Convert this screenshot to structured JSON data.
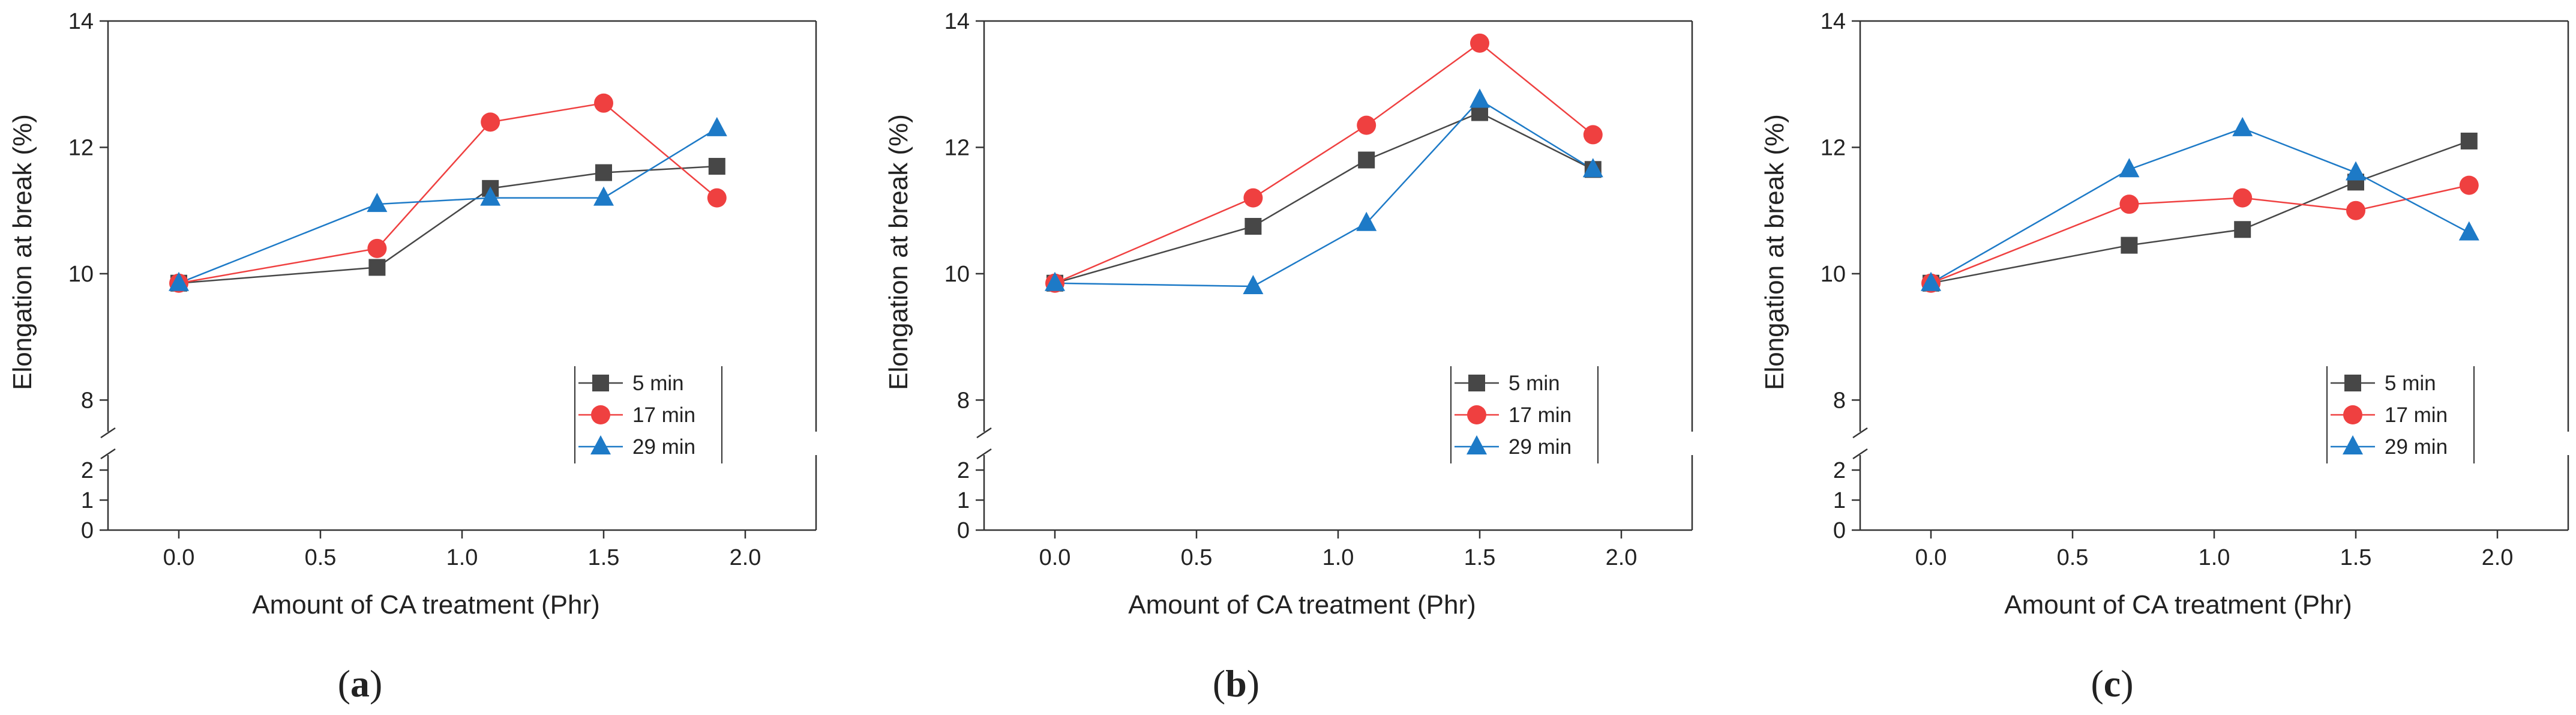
{
  "colors": {
    "5 min": "#474747",
    "17 min": "#ef4040",
    "29 min": "#1d7ac7",
    "axis": "#333333"
  },
  "chart_data": [
    {
      "type": "line",
      "caption": "(a)",
      "caption_parts": [
        "(",
        "a",
        ")"
      ],
      "xlabel": "Amount of CA treatment (Phr)",
      "ylabel": "Elongation at break (%)",
      "xlim": [
        -0.25,
        2.25
      ],
      "x_ticks": [
        0.0,
        0.5,
        1.0,
        1.5,
        2.0
      ],
      "x_tick_labels": [
        "0.0",
        "0.5",
        "1.0",
        "1.5",
        "2.0"
      ],
      "y_axis_break": true,
      "ylim_lower": [
        0,
        2.5
      ],
      "ylim_upper": [
        7.5,
        14
      ],
      "y_ticks_lower": [
        0,
        1,
        2
      ],
      "y_tick_labels_lower": [
        "0",
        "1",
        "2"
      ],
      "y_ticks_upper": [
        8,
        10,
        12,
        14
      ],
      "y_tick_labels_upper": [
        "8",
        "10",
        "12",
        "14"
      ],
      "legend_position": "bottom-right",
      "series": [
        {
          "name": "5 min",
          "marker": "square",
          "x": [
            0,
            0.7,
            1.1,
            1.5,
            1.9
          ],
          "y": [
            9.85,
            10.1,
            11.35,
            11.6,
            11.7
          ]
        },
        {
          "name": "17 min",
          "marker": "circle",
          "x": [
            0,
            0.7,
            1.1,
            1.5,
            1.9
          ],
          "y": [
            9.85,
            10.4,
            12.4,
            12.7,
            11.2
          ]
        },
        {
          "name": "29 min",
          "marker": "triangle",
          "x": [
            0,
            0.7,
            1.1,
            1.5,
            1.9
          ],
          "y": [
            9.85,
            11.1,
            11.2,
            11.2,
            12.3
          ]
        }
      ]
    },
    {
      "type": "line",
      "caption": "(b)",
      "caption_parts": [
        "(",
        "b",
        ")"
      ],
      "xlabel": "Amount of CA treatment (Phr)",
      "ylabel": "Elongation at break (%)",
      "xlim": [
        -0.25,
        2.25
      ],
      "x_ticks": [
        0.0,
        0.5,
        1.0,
        1.5,
        2.0
      ],
      "x_tick_labels": [
        "0.0",
        "0.5",
        "1.0",
        "1.5",
        "2.0"
      ],
      "y_axis_break": true,
      "ylim_lower": [
        0,
        2.5
      ],
      "ylim_upper": [
        7.5,
        14
      ],
      "y_ticks_lower": [
        0,
        1,
        2
      ],
      "y_tick_labels_lower": [
        "0",
        "1",
        "2"
      ],
      "y_ticks_upper": [
        8,
        10,
        12,
        14
      ],
      "y_tick_labels_upper": [
        "8",
        "10",
        "12",
        "14"
      ],
      "legend_position": "bottom-right",
      "series": [
        {
          "name": "5 min",
          "marker": "square",
          "x": [
            0,
            0.7,
            1.1,
            1.5,
            1.9
          ],
          "y": [
            9.85,
            10.75,
            11.8,
            12.55,
            11.65
          ]
        },
        {
          "name": "17 min",
          "marker": "circle",
          "x": [
            0,
            0.7,
            1.1,
            1.5,
            1.9
          ],
          "y": [
            9.85,
            11.2,
            12.35,
            13.65,
            12.2
          ]
        },
        {
          "name": "29 min",
          "marker": "triangle",
          "x": [
            0,
            0.7,
            1.1,
            1.5,
            1.9
          ],
          "y": [
            9.85,
            9.8,
            10.8,
            12.75,
            11.65
          ]
        }
      ]
    },
    {
      "type": "line",
      "caption": "(c)",
      "caption_parts": [
        "(",
        "c",
        ")"
      ],
      "xlabel": "Amount of CA treatment (Phr)",
      "ylabel": "Elongation at break (%)",
      "xlim": [
        -0.25,
        2.25
      ],
      "x_ticks": [
        0.0,
        0.5,
        1.0,
        1.5,
        2.0
      ],
      "x_tick_labels": [
        "0.0",
        "0.5",
        "1.0",
        "1.5",
        "2.0"
      ],
      "y_axis_break": true,
      "ylim_lower": [
        0,
        2.5
      ],
      "ylim_upper": [
        7.5,
        14
      ],
      "y_ticks_lower": [
        0,
        1,
        2
      ],
      "y_tick_labels_lower": [
        "0",
        "1",
        "2"
      ],
      "y_ticks_upper": [
        8,
        10,
        12,
        14
      ],
      "y_tick_labels_upper": [
        "8",
        "10",
        "12",
        "14"
      ],
      "legend_position": "bottom-right",
      "series": [
        {
          "name": "5 min",
          "marker": "square",
          "x": [
            0,
            0.7,
            1.1,
            1.5,
            1.9
          ],
          "y": [
            9.85,
            10.45,
            10.7,
            11.45,
            12.1
          ]
        },
        {
          "name": "17 min",
          "marker": "circle",
          "x": [
            0,
            0.7,
            1.1,
            1.5,
            1.9
          ],
          "y": [
            9.85,
            11.1,
            11.2,
            11.0,
            11.4
          ]
        },
        {
          "name": "29 min",
          "marker": "triangle",
          "x": [
            0,
            0.7,
            1.1,
            1.5,
            1.9
          ],
          "y": [
            9.85,
            11.65,
            12.3,
            11.6,
            10.65
          ]
        }
      ]
    }
  ]
}
